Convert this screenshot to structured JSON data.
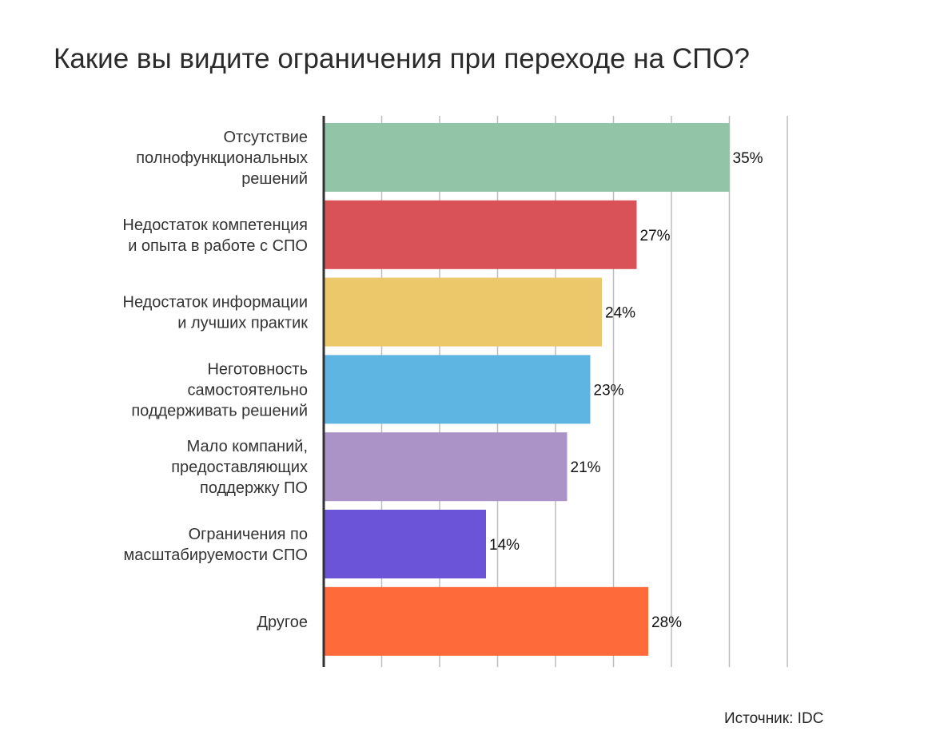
{
  "title": "Какие вы видите ограничения при переходе на СПО?",
  "source": "Источник: IDC",
  "chart_data": {
    "type": "bar",
    "orientation": "horizontal",
    "title": "Какие вы видите ограничения при переходе на СПО?",
    "categories": [
      [
        "Отсутствие",
        "полнофункциональных",
        "решений"
      ],
      [
        "Недостаток компетенция",
        "и опыта в работе с СПО"
      ],
      [
        "Недостаток информации",
        "и лучших практик"
      ],
      [
        "Неготовность",
        "самостоятельно",
        "поддерживать решений"
      ],
      [
        "Мало компаний,",
        "предоставляющих",
        "поддержку ПО"
      ],
      [
        "Ограничения по",
        "масштабируемости СПО"
      ],
      [
        "Другое"
      ]
    ],
    "values": [
      35,
      27,
      24,
      23,
      21,
      14,
      28
    ],
    "value_labels": [
      "35%",
      "27%",
      "24%",
      "23%",
      "21%",
      "14%",
      "28%"
    ],
    "colors": [
      "#92c5a8",
      "#d95257",
      "#ecc86a",
      "#5fb5e2",
      "#ab93c8",
      "#6c54d8",
      "#fe6a3a"
    ],
    "xlim": [
      0,
      40
    ],
    "grid": true,
    "xlabel": "",
    "ylabel": ""
  }
}
